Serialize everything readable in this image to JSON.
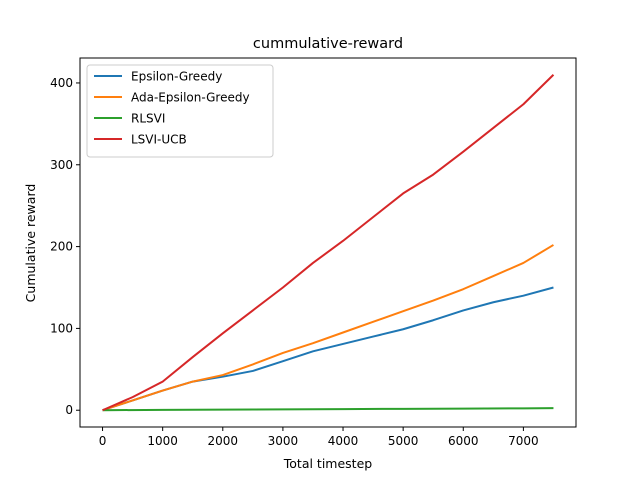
{
  "chart_data": {
    "type": "line",
    "title": "cummulative-reward",
    "xlabel": "Total timestep",
    "ylabel": "Cumulative reward",
    "xlim": [
      -375,
      7875
    ],
    "ylim": [
      -20.5,
      430.5
    ],
    "xticks": [
      0,
      1000,
      2000,
      3000,
      4000,
      5000,
      6000,
      7000
    ],
    "yticks": [
      0,
      100,
      200,
      300,
      400
    ],
    "grid": false,
    "legend_position": "upper-left",
    "series": [
      {
        "name": "Epsilon-Greedy",
        "color": "#1f77b4",
        "x": [
          0,
          500,
          1000,
          1500,
          2000,
          2500,
          3000,
          3500,
          4000,
          4500,
          5000,
          5500,
          6000,
          6500,
          7000,
          7500
        ],
        "y": [
          0,
          12,
          24,
          35,
          41,
          48,
          60,
          72,
          81,
          90,
          99,
          110,
          122,
          132,
          140,
          150
        ]
      },
      {
        "name": "Ada-Epsilon-Greedy",
        "color": "#ff7f0e",
        "x": [
          0,
          500,
          1000,
          1500,
          2000,
          2500,
          3000,
          3500,
          4000,
          4500,
          5000,
          5500,
          6000,
          6500,
          7000,
          7500
        ],
        "y": [
          0,
          12,
          24,
          35,
          43,
          56,
          70,
          82,
          95,
          108,
          121,
          134,
          148,
          164,
          180,
          202
        ]
      },
      {
        "name": "RLSVI",
        "color": "#2ca02c",
        "x": [
          0,
          1000,
          2000,
          3000,
          4000,
          5000,
          6000,
          7000,
          7500
        ],
        "y": [
          0,
          0.5,
          0.8,
          1.1,
          1.4,
          1.7,
          2.0,
          2.3,
          2.5
        ]
      },
      {
        "name": "LSVI-UCB",
        "color": "#d62728",
        "x": [
          0,
          500,
          1000,
          1500,
          2000,
          2500,
          3000,
          3500,
          4000,
          4500,
          5000,
          5500,
          6000,
          6500,
          7000,
          7500
        ],
        "y": [
          0,
          16,
          35,
          65,
          94,
          122,
          150,
          180,
          207,
          236,
          265,
          288,
          316,
          345,
          374,
          410
        ]
      }
    ]
  }
}
